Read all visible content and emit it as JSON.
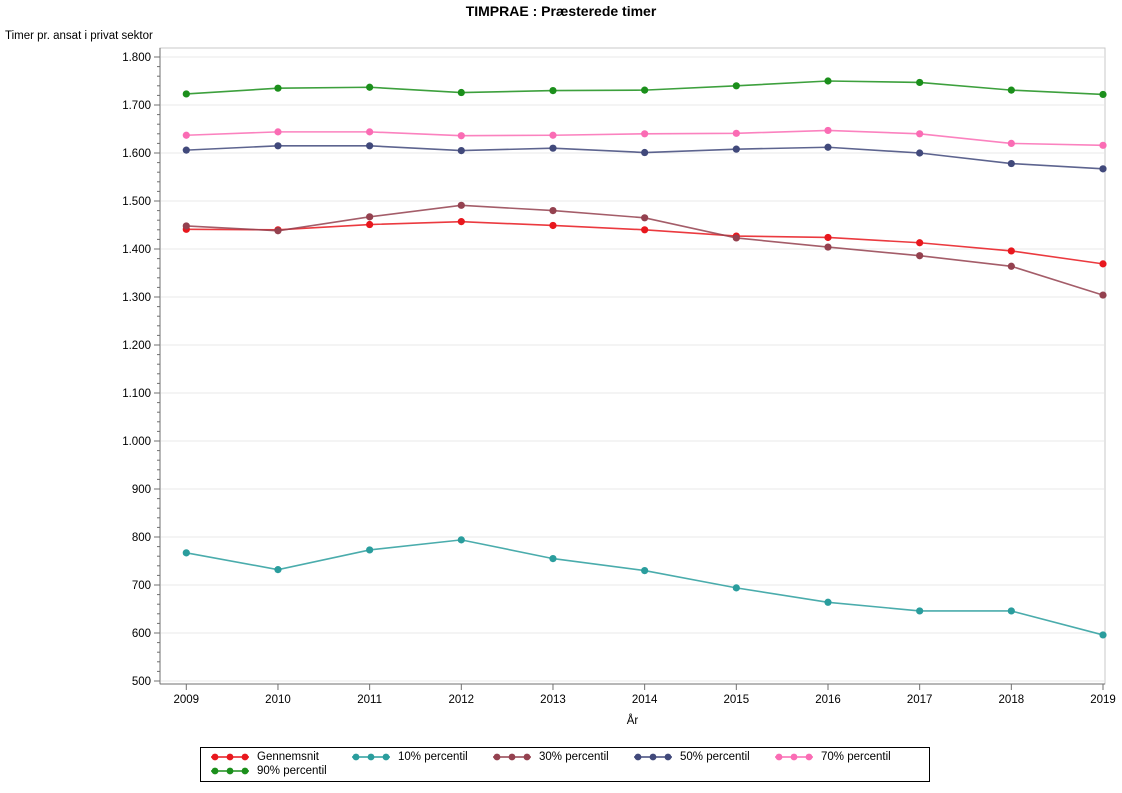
{
  "title": "TIMPRAE : Præsterede timer",
  "chart_data": {
    "type": "line",
    "title": "TIMPRAE : Præsterede timer",
    "xlabel": "År",
    "ylabel": "Timer pr. ansat i privat sektor",
    "x": [
      2009,
      2010,
      2011,
      2012,
      2013,
      2014,
      2015,
      2016,
      2017,
      2018,
      2019
    ],
    "ylim": [
      500,
      1800
    ],
    "ytick_step": 100,
    "ytick_labels": [
      "500",
      "600",
      "700",
      "800",
      "900",
      "1.000",
      "1.100",
      "1.200",
      "1.300",
      "1.400",
      "1.500",
      "1.600",
      "1.700",
      "1.800"
    ],
    "grid": true,
    "legend_position": "bottom",
    "series": [
      {
        "name": "Gennemsnit",
        "color": "#e8171d",
        "values": [
          1441,
          1440,
          1451,
          1457,
          1449,
          1440,
          1427,
          1424,
          1413,
          1396,
          1369
        ]
      },
      {
        "name": "10% percentil",
        "color": "#2a9d9d",
        "values": [
          767,
          732,
          773,
          794,
          755,
          730,
          694,
          664,
          646,
          646,
          596
        ]
      },
      {
        "name": "30% percentil",
        "color": "#94414f",
        "values": [
          1448,
          1438,
          1467,
          1491,
          1480,
          1465,
          1423,
          1404,
          1386,
          1364,
          1304
        ]
      },
      {
        "name": "50% percentil",
        "color": "#41497b",
        "values": [
          1606,
          1615,
          1615,
          1605,
          1610,
          1601,
          1608,
          1612,
          1600,
          1578,
          1567
        ]
      },
      {
        "name": "70% percentil",
        "color": "#fa6cb4",
        "values": [
          1637,
          1644,
          1644,
          1636,
          1637,
          1640,
          1641,
          1647,
          1640,
          1620,
          1616
        ]
      },
      {
        "name": "90% percentil",
        "color": "#1b8f1b",
        "values": [
          1723,
          1735,
          1737,
          1726,
          1730,
          1731,
          1740,
          1750,
          1747,
          1731,
          1722
        ]
      }
    ]
  },
  "style_colors": {
    "gridline": "#e9e9e9",
    "frame": "#c9c9c9",
    "axis": "#6f6f6f"
  }
}
